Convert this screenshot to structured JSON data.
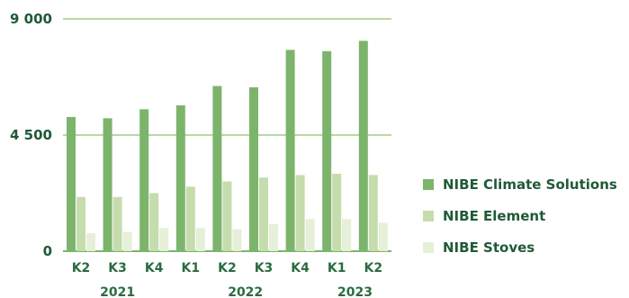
{
  "chart_data": {
    "type": "bar",
    "ylim": [
      0,
      9000
    ],
    "y_ticks": [
      "0",
      "4 500",
      "9 000"
    ],
    "y_tick_values": [
      0,
      4500,
      9000
    ],
    "categories": [
      "K2",
      "K3",
      "K4",
      "K1",
      "K2",
      "K3",
      "K4",
      "K1",
      "K2"
    ],
    "groups": [
      {
        "label": "2021",
        "categories": [
          0,
          1,
          2
        ]
      },
      {
        "label": "2022",
        "categories": [
          3,
          4,
          5,
          6
        ]
      },
      {
        "label": "2023",
        "categories": [
          7,
          8
        ]
      }
    ],
    "series": [
      {
        "name": "NIBE Climate Solutions",
        "color": "#7db46c",
        "values": [
          5200,
          5150,
          5500,
          5650,
          6400,
          6350,
          7800,
          7750,
          8150
        ]
      },
      {
        "name": "NIBE Element",
        "color": "#c5dcad",
        "values": [
          2100,
          2100,
          2250,
          2500,
          2700,
          2850,
          2950,
          3000,
          2950
        ]
      },
      {
        "name": "NIBE Stoves",
        "color": "#e6f0d8",
        "values": [
          700,
          750,
          900,
          900,
          850,
          1050,
          1250,
          1250,
          1100
        ]
      }
    ],
    "grid": true,
    "legend": "right"
  }
}
